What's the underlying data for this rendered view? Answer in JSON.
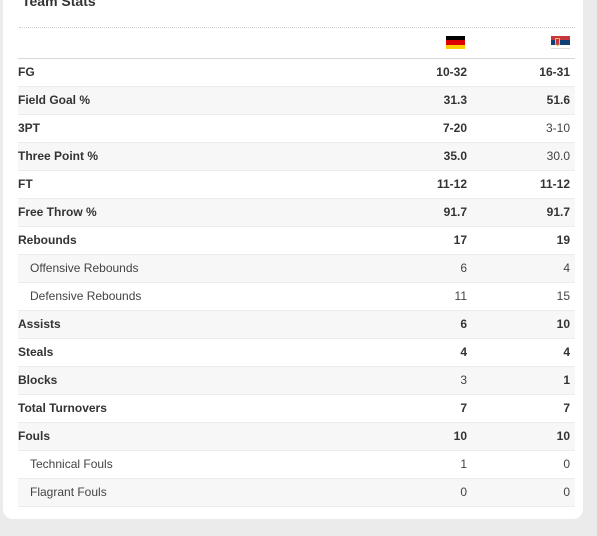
{
  "title": "Team Stats",
  "teams": [
    {
      "name": "Germany",
      "icon": "germany-flag-icon",
      "colors": [
        "#000000",
        "#dd0000",
        "#ffce00"
      ]
    },
    {
      "name": "Serbia",
      "icon": "serbia-flag-icon",
      "colors": [
        "#c6363c",
        "#0c4076",
        "#ffffff"
      ]
    }
  ],
  "rows": [
    {
      "label": "FG",
      "home": "10-32",
      "away": "16-31",
      "sub": false,
      "home_bold": true,
      "away_bold": true
    },
    {
      "label": "Field Goal %",
      "home": "31.3",
      "away": "51.6",
      "sub": false,
      "home_bold": true,
      "away_bold": true
    },
    {
      "label": "3PT",
      "home": "7-20",
      "away": "3-10",
      "sub": false,
      "home_bold": true,
      "away_bold": false
    },
    {
      "label": "Three Point %",
      "home": "35.0",
      "away": "30.0",
      "sub": false,
      "home_bold": true,
      "away_bold": false
    },
    {
      "label": "FT",
      "home": "11-12",
      "away": "11-12",
      "sub": false,
      "home_bold": true,
      "away_bold": true
    },
    {
      "label": "Free Throw %",
      "home": "91.7",
      "away": "91.7",
      "sub": false,
      "home_bold": true,
      "away_bold": true
    },
    {
      "label": "Rebounds",
      "home": "17",
      "away": "19",
      "sub": false,
      "home_bold": true,
      "away_bold": true
    },
    {
      "label": "Offensive Rebounds",
      "home": "6",
      "away": "4",
      "sub": true,
      "home_bold": false,
      "away_bold": false
    },
    {
      "label": "Defensive Rebounds",
      "home": "11",
      "away": "15",
      "sub": true,
      "home_bold": false,
      "away_bold": false
    },
    {
      "label": "Assists",
      "home": "6",
      "away": "10",
      "sub": false,
      "home_bold": true,
      "away_bold": true
    },
    {
      "label": "Steals",
      "home": "4",
      "away": "4",
      "sub": false,
      "home_bold": true,
      "away_bold": true
    },
    {
      "label": "Blocks",
      "home": "3",
      "away": "1",
      "sub": false,
      "home_bold": false,
      "away_bold": true
    },
    {
      "label": "Total Turnovers",
      "home": "7",
      "away": "7",
      "sub": false,
      "home_bold": true,
      "away_bold": true
    },
    {
      "label": "Fouls",
      "home": "10",
      "away": "10",
      "sub": false,
      "home_bold": true,
      "away_bold": true
    },
    {
      "label": "Technical Fouls",
      "home": "1",
      "away": "0",
      "sub": true,
      "home_bold": false,
      "away_bold": false
    },
    {
      "label": "Flagrant Fouls",
      "home": "0",
      "away": "0",
      "sub": true,
      "home_bold": false,
      "away_bold": false
    }
  ]
}
